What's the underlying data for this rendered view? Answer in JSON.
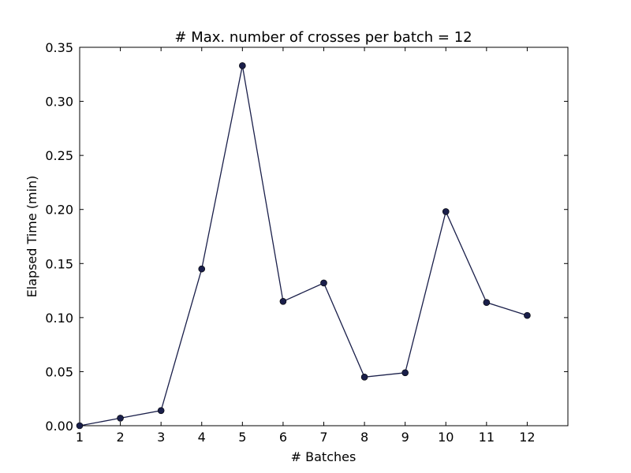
{
  "chart_data": {
    "type": "line",
    "title": "# Max. number of crosses per batch = 12",
    "xlabel": "# Batches",
    "ylabel": "Elapsed Time (min)",
    "xlim": [
      1,
      13
    ],
    "ylim": [
      0,
      0.35
    ],
    "x_ticks": [
      1,
      2,
      3,
      4,
      5,
      6,
      7,
      8,
      9,
      10,
      11,
      12
    ],
    "y_ticks": [
      "0.00",
      "0.05",
      "0.10",
      "0.15",
      "0.20",
      "0.25",
      "0.30",
      "0.35"
    ],
    "grid": false,
    "series": [
      {
        "color": "#1a1f4a",
        "marker": "circle",
        "x": [
          1,
          2,
          3,
          4,
          5,
          6,
          7,
          8,
          9,
          10,
          11,
          12
        ],
        "y": [
          0.0,
          0.007,
          0.014,
          0.145,
          0.333,
          0.115,
          0.132,
          0.045,
          0.049,
          0.198,
          0.114,
          0.102
        ]
      }
    ]
  }
}
